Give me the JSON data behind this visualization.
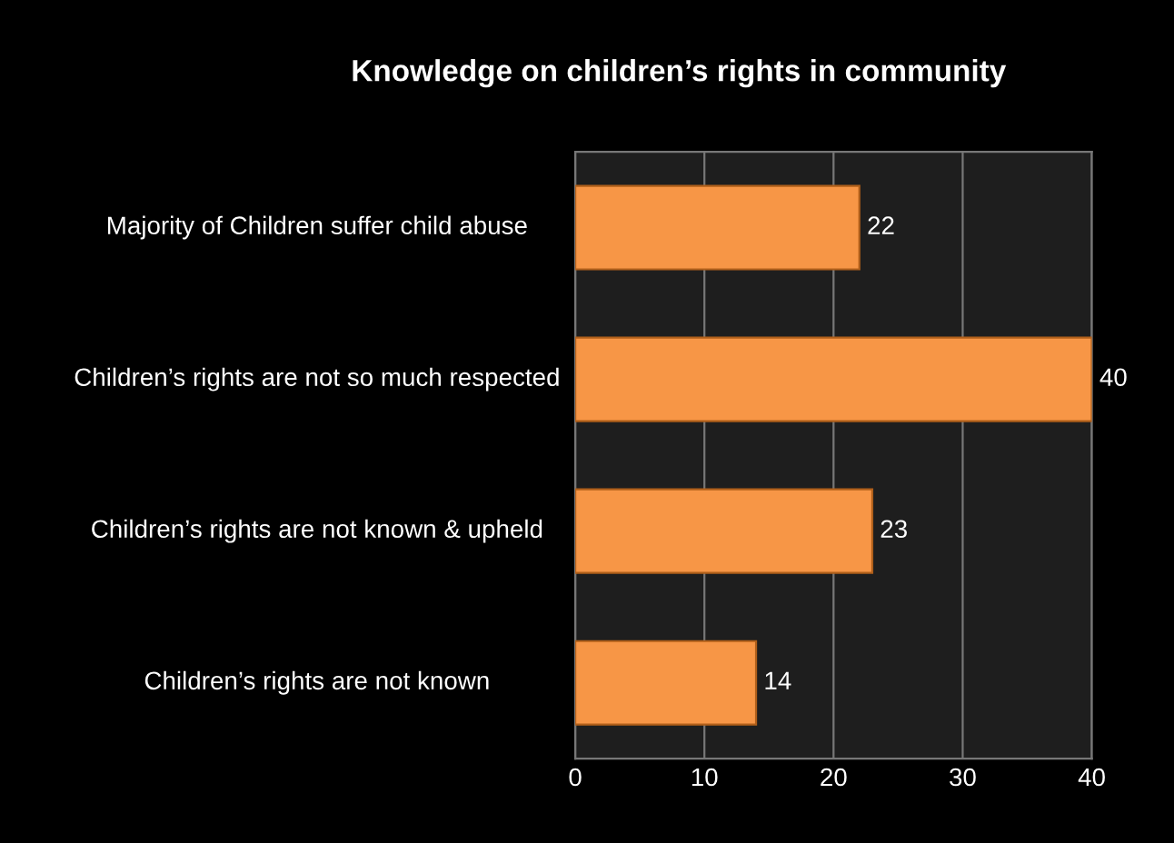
{
  "chart_data": {
    "type": "bar",
    "orientation": "horizontal",
    "title": "Knowledge on children’s rights in community",
    "categories": [
      "Majority of Children suffer child abuse",
      "Children’s rights are not so much respected",
      "Children’s rights are not known & upheld",
      "Children’s rights are not known"
    ],
    "values": [
      22,
      40,
      23,
      14
    ],
    "color": "#f79646",
    "data_labels": true,
    "xlim": [
      0,
      40
    ],
    "xticks": [
      0,
      10,
      20,
      30,
      40
    ],
    "grid": "x"
  }
}
